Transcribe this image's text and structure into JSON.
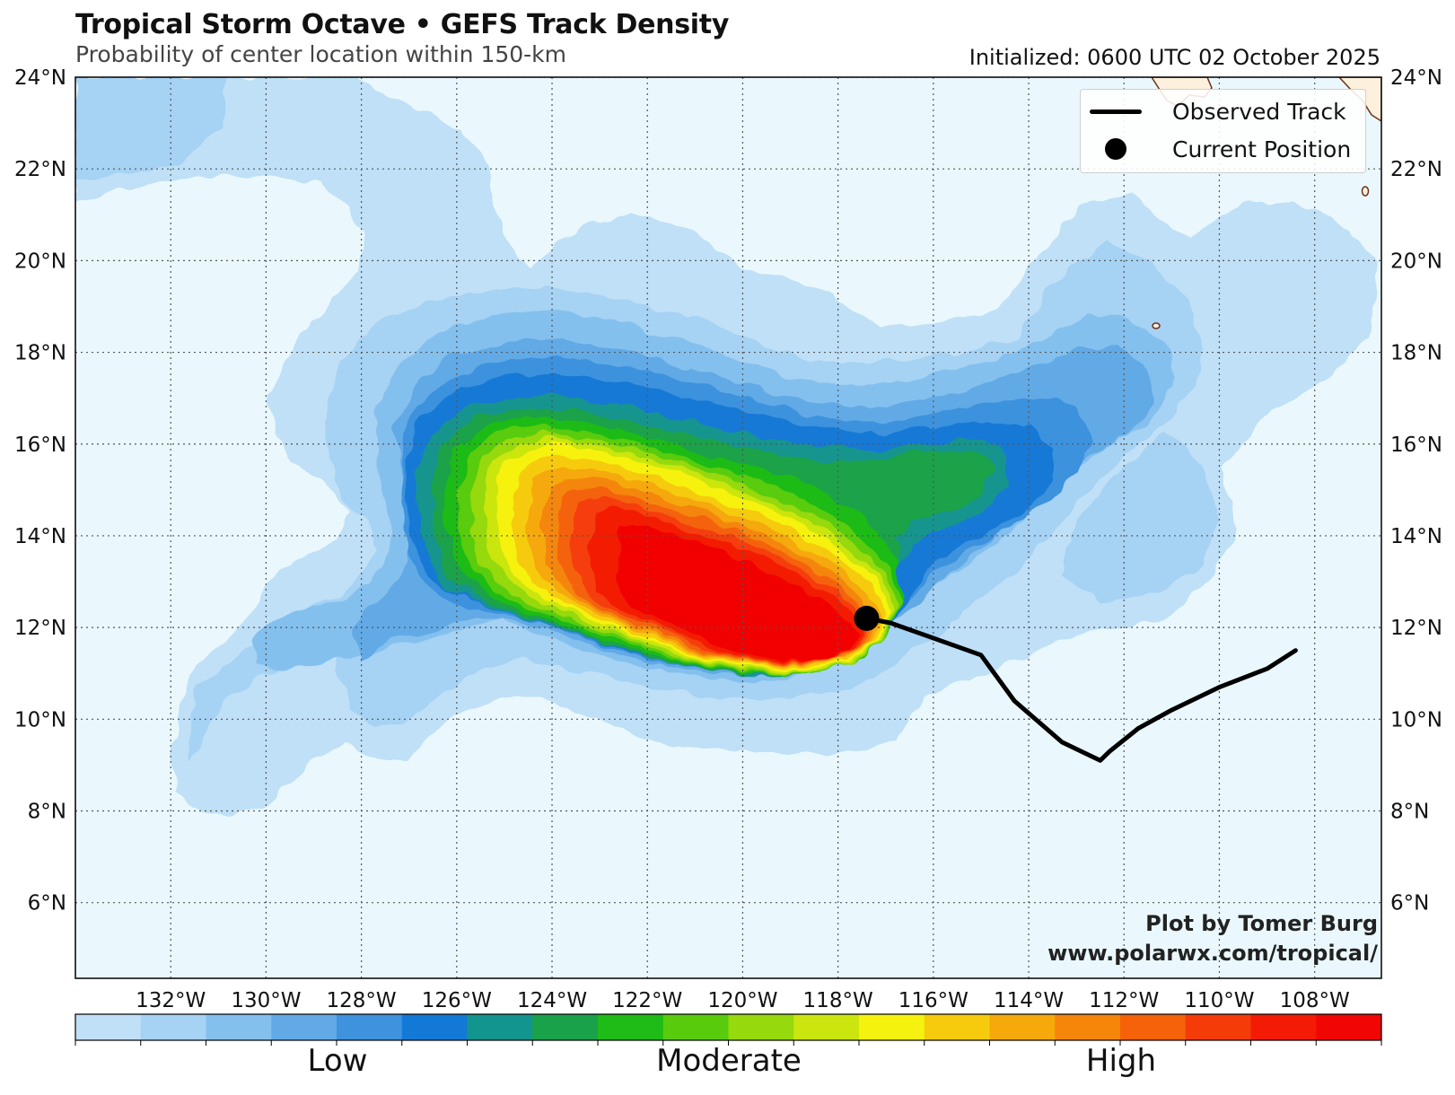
{
  "title": "Tropical Storm Octave • GEFS Track Density",
  "subtitle": "Probability of center location within 150-km",
  "initialized": "Initialized: 0600 UTC 02 October 2025",
  "legend": {
    "observed_track": "Observed Track",
    "current_position": "Current Position"
  },
  "credit": {
    "line1": "Plot by Tomer Burg",
    "line2": "www.polarwx.com/tropical/"
  },
  "colorbar": {
    "labels": [
      "Low",
      "Moderate",
      "High"
    ],
    "colors": [
      "#bfe0f7",
      "#a6d2f3",
      "#84c0ee",
      "#62aae6",
      "#3e92de",
      "#1379d6",
      "#13958f",
      "#1aa24a",
      "#1fbb17",
      "#58cc0c",
      "#96d90d",
      "#cbe60e",
      "#f6f20f",
      "#f6cb0d",
      "#f5a90b",
      "#f5860a",
      "#f56209",
      "#f53c08",
      "#f31b06",
      "#f20603"
    ]
  },
  "axes": {
    "lat_labels": [
      "24°N",
      "22°N",
      "20°N",
      "18°N",
      "16°N",
      "14°N",
      "12°N",
      "10°N",
      "8°N",
      "6°N"
    ],
    "lon_labels": [
      "132°W",
      "130°W",
      "128°W",
      "126°W",
      "124°W",
      "122°W",
      "120°W",
      "118°W",
      "116°W",
      "114°W",
      "112°W",
      "110°W",
      "108°W"
    ]
  },
  "map_colors": {
    "ocean": "#eaf8fd",
    "land": "#fdf0dc",
    "coast": "#6b2f1a",
    "grid": "#555555",
    "track": "#000000"
  },
  "observed_track": {
    "lat": [
      12.2,
      12.1,
      11.4,
      10.4,
      9.5,
      9.3,
      9.1,
      9.3,
      9.8,
      10.2,
      10.7,
      11.1,
      11.5
    ],
    "lon": [
      -117.4,
      -116.9,
      -115.0,
      -114.3,
      -113.3,
      -112.9,
      -112.5,
      -112.3,
      -111.7,
      -111.0,
      -110.0,
      -109.0,
      -108.4
    ]
  },
  "current_position": {
    "lat": 12.2,
    "lon": -117.4
  }
}
